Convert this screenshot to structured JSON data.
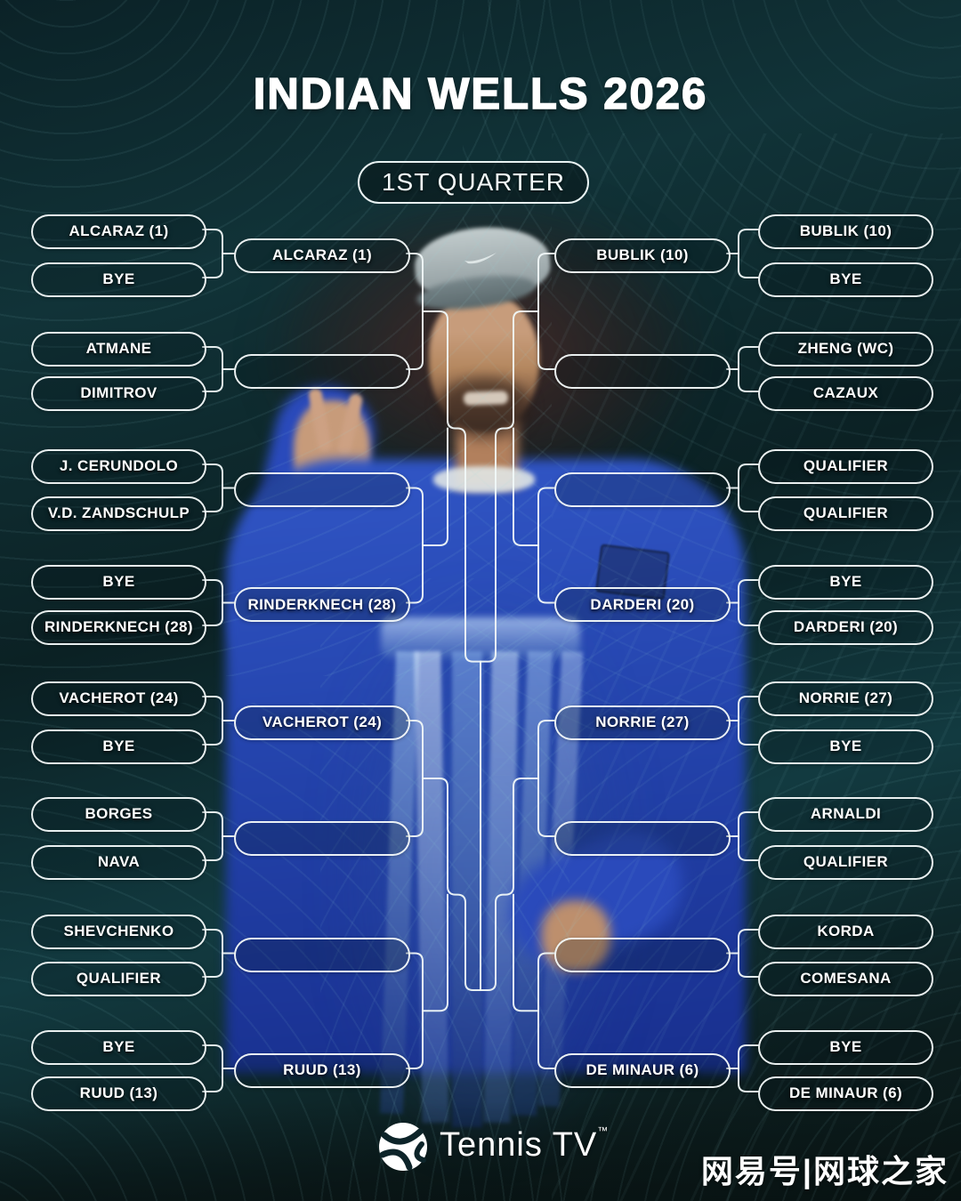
{
  "header": {
    "title": "INDIAN WELLS 2026",
    "round_label": "1ST QUARTER"
  },
  "bracket": {
    "left": {
      "round1": [
        [
          "ALCARAZ (1)",
          "BYE"
        ],
        [
          "ATMANE",
          "DIMITROV"
        ],
        [
          "J. CERUNDOLO",
          "V.D. ZANDSCHULP"
        ],
        [
          "BYE",
          "RINDERKNECH (28)"
        ],
        [
          "VACHEROT (24)",
          "BYE"
        ],
        [
          "BORGES",
          "NAVA"
        ],
        [
          "SHEVCHENKO",
          "QUALIFIER"
        ],
        [
          "BYE",
          "RUUD (13)"
        ]
      ],
      "round2": [
        "ALCARAZ (1)",
        "",
        "",
        "RINDERKNECH (28)",
        "VACHEROT (24)",
        "",
        "",
        "RUUD (13)"
      ]
    },
    "right": {
      "round1": [
        [
          "BUBLIK (10)",
          "BYE"
        ],
        [
          "ZHENG (WC)",
          "CAZAUX"
        ],
        [
          "QUALIFIER",
          "QUALIFIER"
        ],
        [
          "BYE",
          "DARDERI (20)"
        ],
        [
          "NORRIE (27)",
          "BYE"
        ],
        [
          "ARNALDI",
          "QUALIFIER"
        ],
        [
          "KORDA",
          "COMESANA"
        ],
        [
          "BYE",
          "DE MINAUR (6)"
        ]
      ],
      "round2": [
        "BUBLIK (10)",
        "",
        "",
        "DARDERI (20)",
        "NORRIE (27)",
        "",
        "",
        "DE MINAUR (6)"
      ]
    }
  },
  "footer": {
    "logo_text": "Tennis TV",
    "logo_tm": "™",
    "watermark": "网易号|网球之家"
  },
  "colors": {
    "line": "rgba(240,248,248,0.95)",
    "pill_border": "rgba(246,251,251,0.95)",
    "background_dark": "#0b2227",
    "background_teal": "#123a40",
    "text": "#ffffff"
  }
}
